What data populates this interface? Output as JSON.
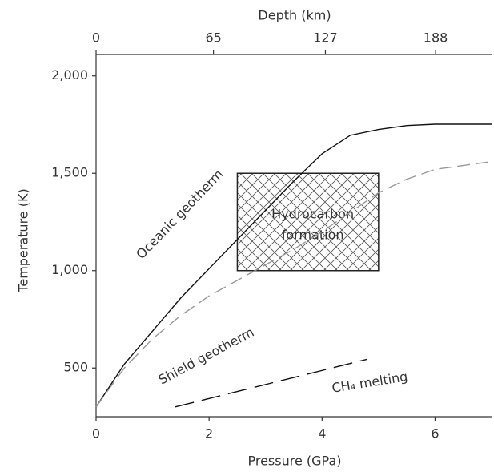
{
  "chart_data": {
    "type": "line",
    "x_label": "Pressure (GPa)",
    "y_label": "Temperature (K)",
    "x2_label": "Depth (km)",
    "xlim": [
      0,
      7
    ],
    "xticks": [
      0,
      2,
      4,
      6
    ],
    "x2lim": [
      0,
      219
    ],
    "x2ticks": [
      0,
      65,
      127,
      188
    ],
    "ylim": [
      250,
      2110
    ],
    "yticks": [
      500,
      {
        "value": 1000,
        "label": "1,000"
      },
      {
        "value": 1500,
        "label": "1,500"
      },
      {
        "value": 2000,
        "label": "2,000"
      }
    ],
    "series": [
      {
        "name": "Oceanic geotherm",
        "color": "#111111",
        "dash": "none",
        "x": [
          0,
          0.5,
          1,
          1.5,
          2,
          2.5,
          3,
          3.5,
          4,
          4.5,
          5,
          5.5,
          6,
          7
        ],
        "values": [
          300,
          520,
          690,
          860,
          1010,
          1160,
          1310,
          1460,
          1600,
          1695,
          1725,
          1745,
          1752,
          1752
        ]
      },
      {
        "name": "Shield geotherm",
        "color": "#999999",
        "dash": "16 7",
        "x": [
          0,
          0.5,
          1,
          1.5,
          2,
          2.5,
          3,
          3.5,
          4,
          4.5,
          5,
          5.5,
          6,
          7
        ],
        "values": [
          300,
          500,
          650,
          770,
          870,
          950,
          1030,
          1110,
          1200,
          1300,
          1400,
          1470,
          1520,
          1560
        ]
      },
      {
        "name": "CH₄ melting",
        "color": "#111111",
        "dash": "24 10",
        "x": [
          1.4,
          4.8
        ],
        "values": [
          300,
          545
        ]
      }
    ],
    "regions": [
      {
        "label": [
          "Hydrocarbon",
          "formation"
        ],
        "x": [
          2.5,
          5
        ],
        "y": [
          1000,
          1500
        ]
      }
    ]
  }
}
